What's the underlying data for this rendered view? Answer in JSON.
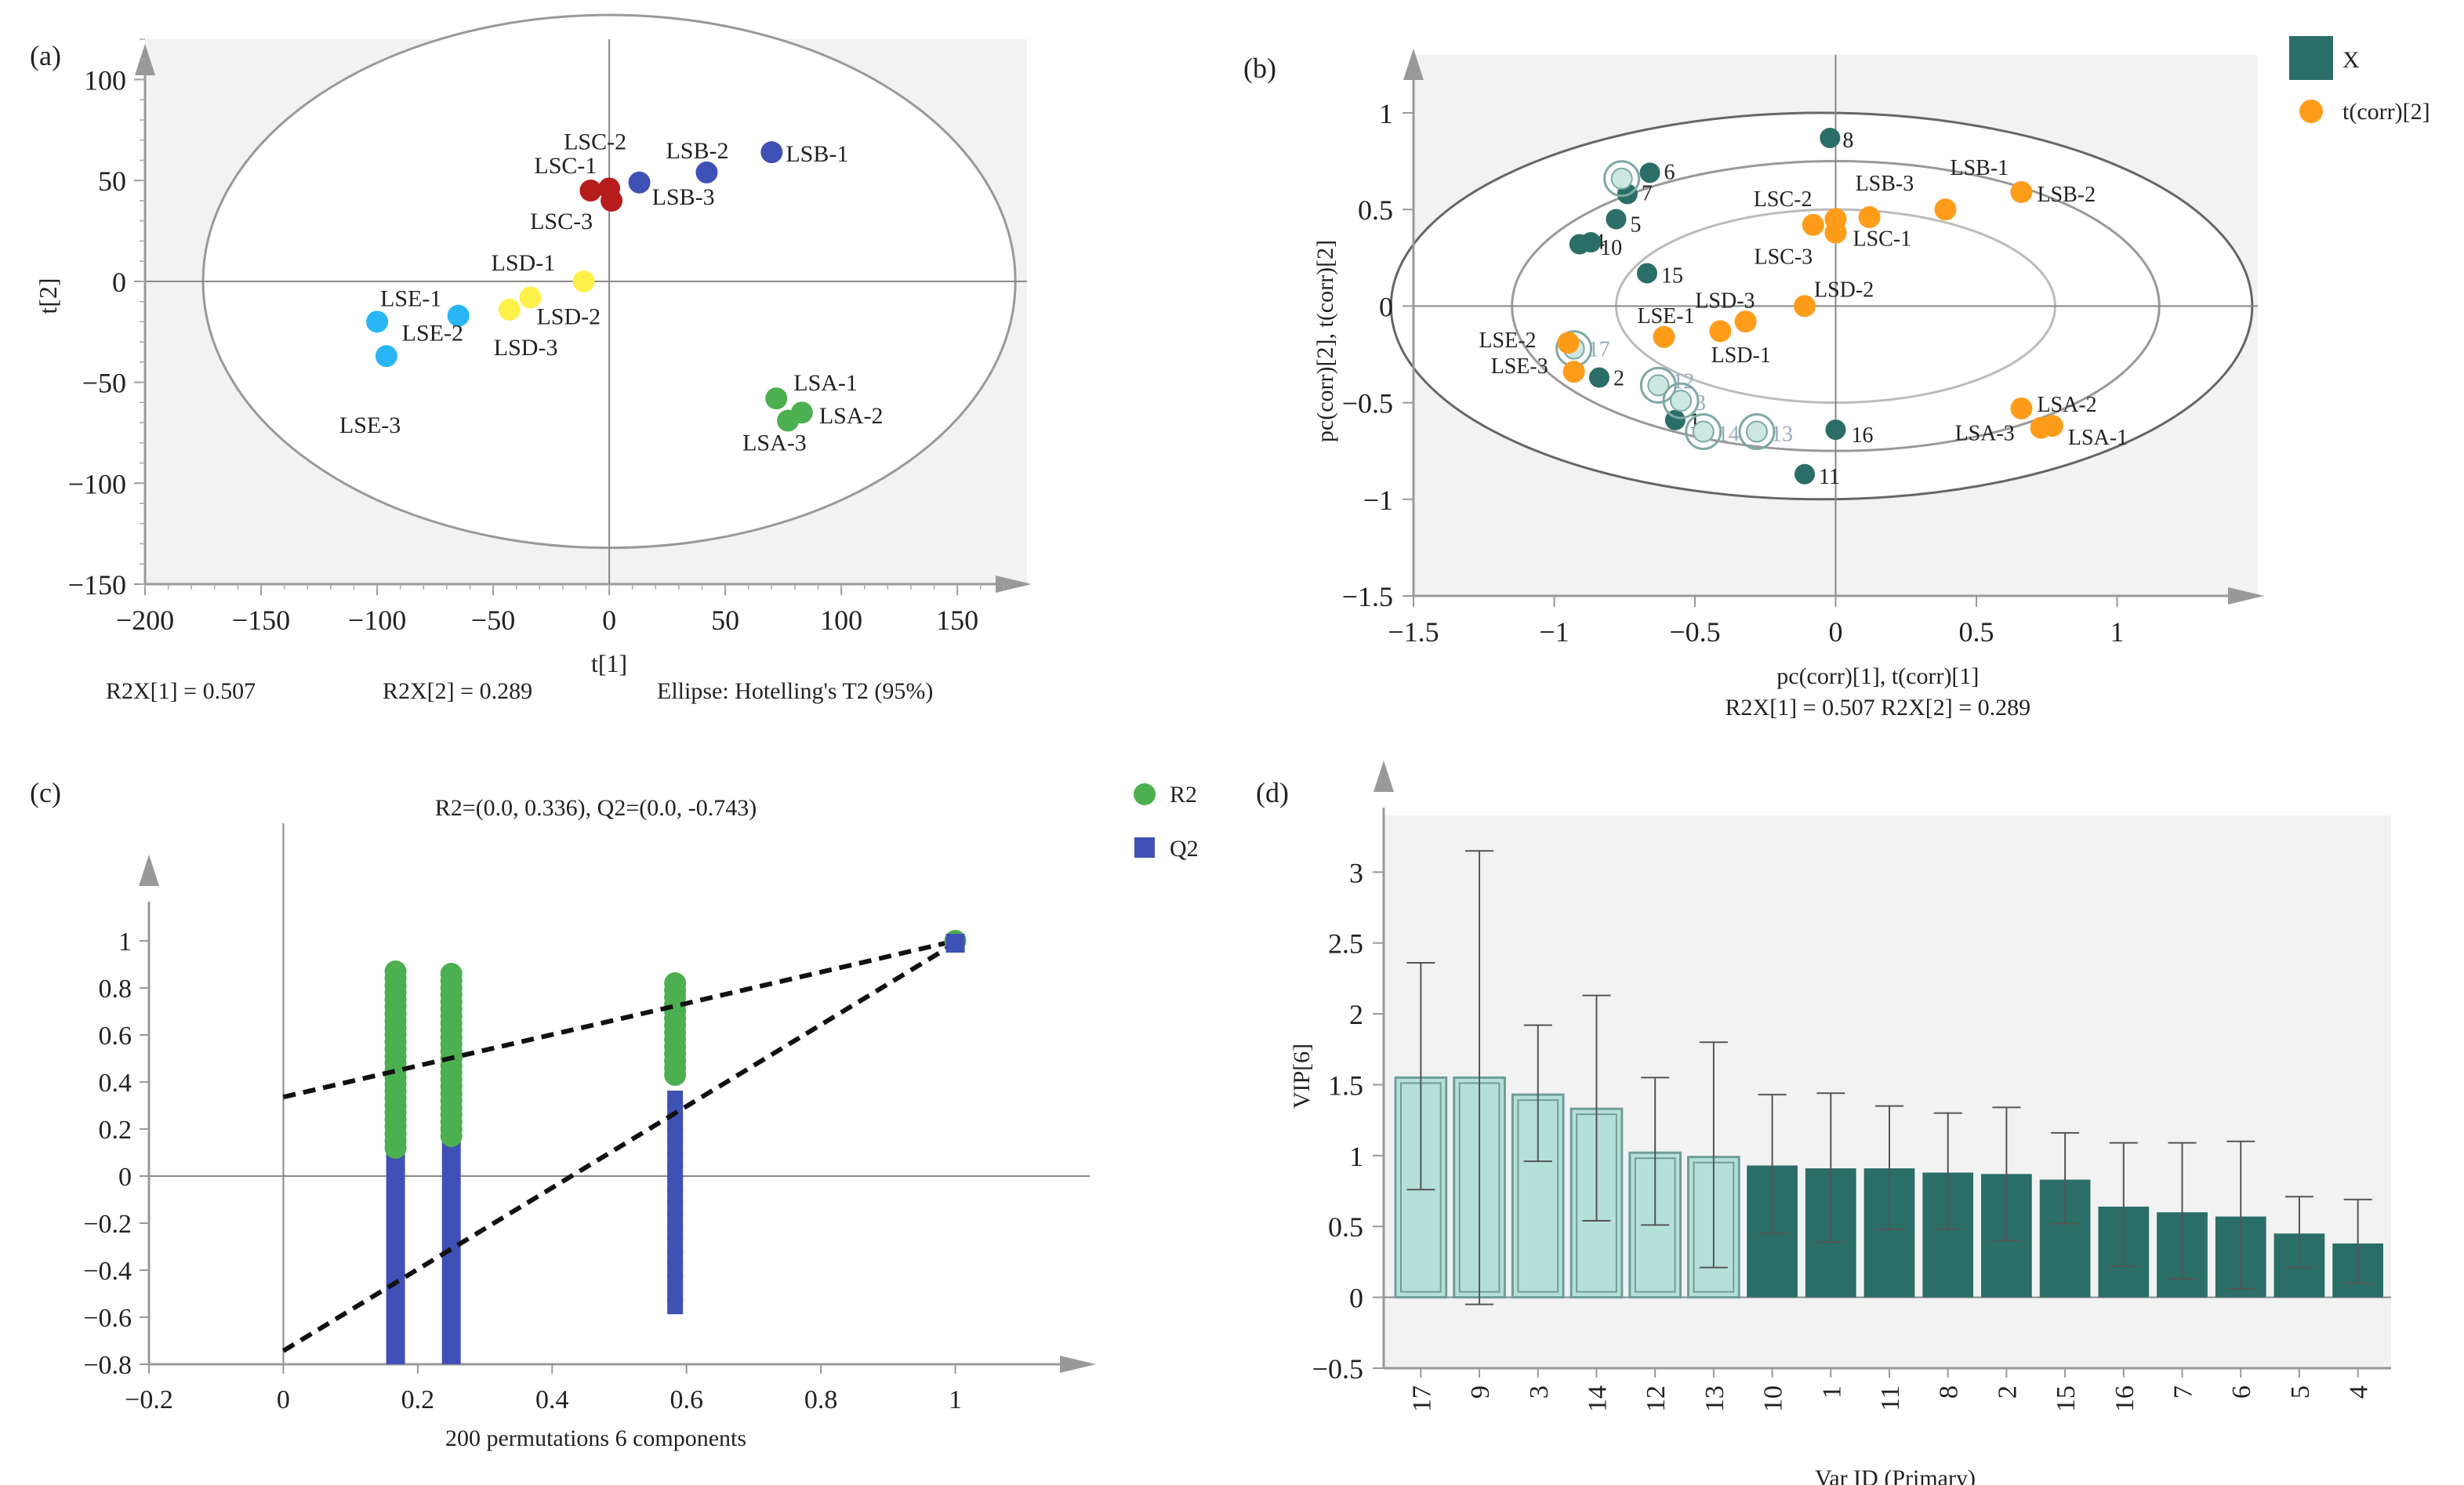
{
  "panels": {
    "a": {
      "label": "(a)",
      "xlabel": "t[1]",
      "ylabel": "t[2]",
      "x_ticks": [
        -200,
        -150,
        -100,
        -50,
        0,
        50,
        100,
        150
      ],
      "y_ticks": [
        -150,
        -100,
        -50,
        0,
        50,
        100
      ],
      "xlim": [
        -200,
        180
      ],
      "ylim": [
        -150,
        120
      ],
      "notes": [
        "R2X[1] = 0.507",
        "R2X[2] = 0.289",
        "Ellipse: Hotelling's T2 (95%)"
      ],
      "legend": [
        {
          "label": "LSA",
          "color": "#4caf50"
        },
        {
          "label": "LSB",
          "color": "#3f51b5"
        },
        {
          "label": "LSC",
          "color": "#b71c1c"
        },
        {
          "label": "LSD",
          "color": "#fff04a"
        },
        {
          "label": "LSE",
          "color": "#29b6f6"
        }
      ],
      "ellipse": {
        "cx": 0,
        "cy": 0,
        "rx": 175,
        "ry": 132
      },
      "points": [
        {
          "label": "LSA-1",
          "group": "LSA",
          "x": 72,
          "y": -58
        },
        {
          "label": "LSA-2",
          "group": "LSA",
          "x": 83,
          "y": -65
        },
        {
          "label": "LSA-3",
          "group": "LSA",
          "x": 77,
          "y": -69
        },
        {
          "label": "LSB-1",
          "group": "LSB",
          "x": 70,
          "y": 64
        },
        {
          "label": "LSB-2",
          "group": "LSB",
          "x": 42,
          "y": 54
        },
        {
          "label": "LSB-3",
          "group": "LSB",
          "x": 13,
          "y": 49
        },
        {
          "label": "LSC-1",
          "group": "LSC",
          "x": -8,
          "y": 45
        },
        {
          "label": "LSC-2",
          "group": "LSC",
          "x": 0,
          "y": 46
        },
        {
          "label": "LSC-3",
          "group": "LSC",
          "x": 1,
          "y": 40
        },
        {
          "label": "LSD-1",
          "group": "LSD",
          "x": -11,
          "y": 0
        },
        {
          "label": "LSD-2",
          "group": "LSD",
          "x": -34,
          "y": -8
        },
        {
          "label": "LSD-3",
          "group": "LSD",
          "x": -43,
          "y": -14
        },
        {
          "label": "LSE-1",
          "group": "LSE",
          "x": -100,
          "y": -20
        },
        {
          "label": "LSE-2",
          "group": "LSE",
          "x": -65,
          "y": -17
        },
        {
          "label": "LSE-3",
          "group": "LSE",
          "x": -96,
          "y": -37
        }
      ]
    },
    "b": {
      "label": "(b)",
      "xlabel": "pc(corr)[1], t(corr)[1]",
      "ylabel": "pc(corr)[2], t(corr)[2]",
      "x_ticks": [
        -1.5,
        -1,
        -0.5,
        0,
        0.5,
        1
      ],
      "y_ticks": [
        -1.5,
        -1,
        -0.5,
        0,
        0.5,
        1
      ],
      "xlim": [
        -1.5,
        1.5
      ],
      "ylim": [
        -1.5,
        1.3
      ],
      "notes": [
        "R2X[1] = 0.507 R2X[2] = 0.289"
      ],
      "legend": [
        {
          "label": "X",
          "color": "#2a6e67"
        },
        {
          "label": "t(corr)[2]",
          "color": "#ff9c1a"
        }
      ],
      "ellipses": [
        {
          "rx": 1.0,
          "ry": 1.0
        },
        {
          "rx": 0.75,
          "ry": 0.75
        },
        {
          "rx": 0.5,
          "ry": 0.5
        }
      ],
      "x_points": [
        {
          "label": "8",
          "x": -0.02,
          "y": 0.87,
          "hl": false
        },
        {
          "label": "6",
          "x": -0.66,
          "y": 0.69,
          "hl": false
        },
        {
          "label": "7",
          "x": -0.74,
          "y": 0.58,
          "hl": false
        },
        {
          "label": "5",
          "x": -0.78,
          "y": 0.45,
          "hl": false
        },
        {
          "label": "4",
          "x": -0.91,
          "y": 0.32,
          "hl": false
        },
        {
          "label": "10",
          "x": -0.87,
          "y": 0.33,
          "hl": false
        },
        {
          "label": "15",
          "x": -0.67,
          "y": 0.17,
          "hl": false
        },
        {
          "label": "2",
          "x": -0.84,
          "y": -0.37,
          "hl": false
        },
        {
          "label": "1",
          "x": -0.57,
          "y": -0.59,
          "hl": false
        },
        {
          "label": "16",
          "x": 0.0,
          "y": -0.64,
          "hl": false
        },
        {
          "label": "11",
          "x": -0.11,
          "y": -0.87,
          "hl": false
        },
        {
          "label": "9",
          "x": -0.76,
          "y": 0.66,
          "hl": true
        },
        {
          "label": "17",
          "x": -0.93,
          "y": -0.22,
          "hl": true
        },
        {
          "label": "12",
          "x": -0.63,
          "y": -0.41,
          "hl": true
        },
        {
          "label": "3",
          "x": -0.55,
          "y": -0.49,
          "hl": true
        },
        {
          "label": "14",
          "x": -0.47,
          "y": -0.65,
          "hl": true
        },
        {
          "label": "13",
          "x": -0.28,
          "y": -0.65,
          "hl": true
        }
      ],
      "t_points": [
        {
          "label": "LSB-1",
          "x": 0.39,
          "y": 0.5
        },
        {
          "label": "LSB-2",
          "x": 0.66,
          "y": 0.59
        },
        {
          "label": "LSB-3",
          "x": 0.12,
          "y": 0.46
        },
        {
          "label": "LSC-2",
          "x": -0.08,
          "y": 0.42
        },
        {
          "label": "LSC-1",
          "x": 0.0,
          "y": 0.45
        },
        {
          "label": "LSC-3",
          "x": 0.0,
          "y": 0.38
        },
        {
          "label": "LSD-1",
          "x": -0.32,
          "y": -0.08
        },
        {
          "label": "LSD-2",
          "x": -0.11,
          "y": 0.0
        },
        {
          "label": "LSD-3",
          "x": -0.41,
          "y": -0.13
        },
        {
          "label": "LSE-1",
          "x": -0.61,
          "y": -0.16
        },
        {
          "label": "LSE-2",
          "x": -0.95,
          "y": -0.19
        },
        {
          "label": "LSE-3",
          "x": -0.93,
          "y": -0.34
        },
        {
          "label": "LSA-1",
          "x": 0.77,
          "y": -0.62
        },
        {
          "label": "LSA-2",
          "x": 0.66,
          "y": -0.53
        },
        {
          "label": "LSA-3",
          "x": 0.73,
          "y": -0.63
        }
      ]
    },
    "c": {
      "label": "(c)",
      "title": "R2=(0.0, 0.336), Q2=(0.0, -0.743)",
      "xlabel": "200 permutations 6 components",
      "x_ticks": [
        -0.2,
        0,
        0.2,
        0.4,
        0.6,
        0.8,
        1
      ],
      "y_ticks": [
        -0.8,
        -0.6,
        -0.4,
        -0.2,
        0,
        0.2,
        0.4,
        0.6,
        0.8,
        1
      ],
      "xlim": [
        -0.2,
        1.2
      ],
      "ylim": [
        -0.8,
        1.2
      ],
      "legend": [
        {
          "label": "R2",
          "color": "#4caf50",
          "shape": "circle"
        },
        {
          "label": "Q2",
          "color": "#3f51b5",
          "shape": "square"
        }
      ],
      "r2_intercept": 0.336,
      "q2_intercept": -0.743,
      "columns": [
        {
          "x": 0.167,
          "r2_min": 0.12,
          "r2_max": 0.88,
          "q2_min": -0.8,
          "q2_max": 0.62
        },
        {
          "x": 0.25,
          "r2_min": 0.17,
          "r2_max": 0.86,
          "q2_min": -0.8,
          "q2_max": 0.37
        },
        {
          "x": 0.583,
          "r2_min": 0.43,
          "r2_max": 0.84,
          "q2_min": -0.58,
          "q2_max": 0.33
        }
      ],
      "final": {
        "x": 1.0,
        "r2": 1.0,
        "q2": 0.99
      }
    },
    "d": {
      "label": "(d)",
      "xlabel": "Var ID (Primary)",
      "ylabel": "VIP[6]",
      "y_ticks": [
        -0.5,
        0,
        0.5,
        1,
        1.5,
        2,
        2.5,
        3
      ],
      "ylim": [
        -0.5,
        3.4
      ],
      "light_color": "#b5e0d8",
      "dark_color": "#2a6e67",
      "categories": [
        "17",
        "9",
        "3",
        "14",
        "12",
        "13",
        "10",
        "1",
        "11",
        "8",
        "2",
        "15",
        "16",
        "7",
        "6",
        "5",
        "4"
      ],
      "values": [
        1.55,
        1.55,
        1.43,
        1.33,
        1.02,
        0.99,
        0.93,
        0.91,
        0.91,
        0.88,
        0.87,
        0.83,
        0.64,
        0.6,
        0.57,
        0.45,
        0.38
      ],
      "err_low": [
        0.76,
        -0.05,
        0.96,
        0.54,
        0.51,
        0.21,
        0.45,
        0.39,
        0.48,
        0.48,
        0.4,
        0.52,
        0.22,
        0.13,
        0.06,
        0.21,
        0.1
      ],
      "err_high": [
        2.36,
        3.15,
        1.92,
        2.13,
        1.55,
        1.8,
        1.43,
        1.44,
        1.35,
        1.3,
        1.34,
        1.16,
        1.09,
        1.09,
        1.1,
        0.71,
        0.69
      ],
      "highlighted": 6
    }
  }
}
